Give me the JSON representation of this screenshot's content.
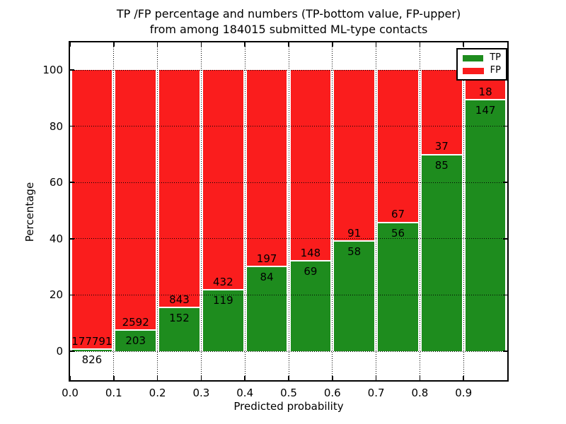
{
  "title": {
    "line1": "TP /FP percentage and numbers (TP-bottom value, FP-upper)",
    "line2": "from among 184015 submitted ML-type contacts"
  },
  "chart_data": {
    "type": "bar",
    "stacking": "percentage-stacked-to-100",
    "bin_edges": [
      0.0,
      0.1,
      0.2,
      0.3,
      0.4,
      0.5,
      0.6,
      0.7,
      0.8,
      0.9,
      1.0
    ],
    "categories": [
      "0.0-0.1",
      "0.1-0.2",
      "0.2-0.3",
      "0.3-0.4",
      "0.4-0.5",
      "0.5-0.6",
      "0.6-0.7",
      "0.7-0.8",
      "0.8-0.9",
      "0.9-1.0"
    ],
    "series": [
      {
        "name": "TP",
        "color": "#1e8c1e",
        "values": [
          826,
          203,
          152,
          119,
          84,
          69,
          58,
          56,
          85,
          147
        ]
      },
      {
        "name": "FP",
        "color": "#fa1d1d",
        "values": [
          177791,
          2592,
          843,
          432,
          197,
          148,
          91,
          67,
          37,
          18
        ]
      }
    ],
    "total_contacts": 184015,
    "xlabel": "Predicted probability",
    "ylabel": "Percentage",
    "xtick_labels": [
      "0.0",
      "0.1",
      "0.2",
      "0.3",
      "0.4",
      "0.5",
      "0.6",
      "0.7",
      "0.8",
      "0.9"
    ],
    "ytick_values": [
      0,
      20,
      40,
      60,
      80,
      100
    ],
    "xlim": [
      0.0,
      1.0
    ],
    "ylim": [
      -10.5,
      110.5
    ],
    "grid": "dotted black, vertical lines behind bars, horizontal lines over bars",
    "legend": [
      {
        "label": "TP",
        "color": "#1e8c1e"
      },
      {
        "label": "FP",
        "color": "#fa1d1d"
      }
    ],
    "legend_position": "upper right"
  }
}
